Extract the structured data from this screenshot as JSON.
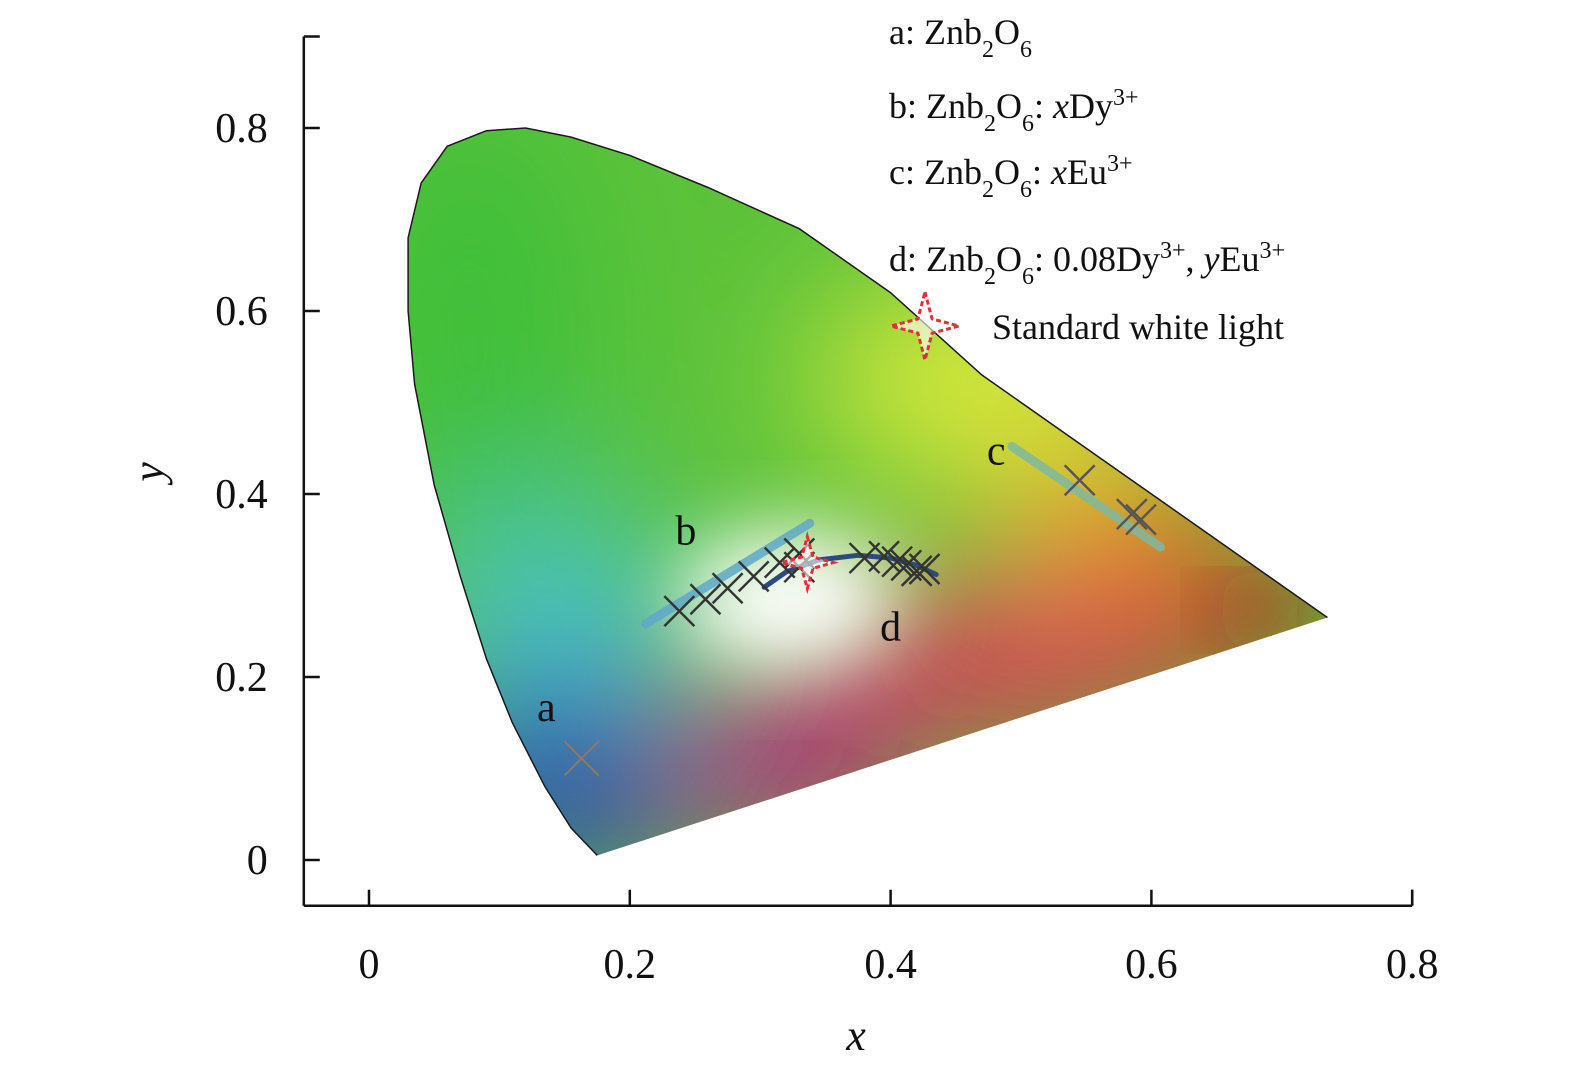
{
  "chart_data": {
    "type": "scatter",
    "title": "",
    "xlabel": "x",
    "ylabel": "y",
    "xlim": [
      -0.05,
      0.8
    ],
    "ylim": [
      -0.05,
      0.9
    ],
    "xticks": [
      0,
      0.2,
      0.4,
      0.6,
      0.8
    ],
    "yticks": [
      0,
      0.2,
      0.4,
      0.6,
      0.8
    ],
    "xtick_labels": [
      "0",
      "0.2",
      "0.4",
      "0.6",
      "0.8"
    ],
    "ytick_labels": [
      "0",
      "0.2",
      "0.4",
      "0.6",
      "0.8"
    ],
    "background": "CIE 1931 chromaticity diagram",
    "series": [
      {
        "name": "a",
        "legend": {
          "prefix": "a: Znb",
          "sub1": "2",
          "mid": "O",
          "sub2": "6",
          "tail": []
        },
        "points": [
          [
            0.163,
            0.111
          ]
        ],
        "color": "#8a7a6a"
      },
      {
        "name": "b",
        "legend": {
          "prefix": "b: Znb",
          "sub1": "2",
          "mid": "O",
          "sub2": "6",
          "tail": [
            {
              "t": ": ",
              "s": "n"
            },
            {
              "t": "x",
              "s": "i"
            },
            {
              "t": "Dy",
              "s": "n"
            },
            {
              "t": "3+",
              "s": "sup"
            }
          ]
        },
        "points": [
          [
            0.238,
            0.272
          ],
          [
            0.258,
            0.285
          ],
          [
            0.275,
            0.297
          ],
          [
            0.295,
            0.31
          ],
          [
            0.315,
            0.325
          ],
          [
            0.33,
            0.335
          ]
        ],
        "trend": [
          [
            0.212,
            0.258
          ],
          [
            0.338,
            0.368
          ]
        ],
        "color": "#333333",
        "trend_color": "#5fa8c8"
      },
      {
        "name": "c",
        "legend": {
          "prefix": "c: Znb",
          "sub1": "2",
          "mid": "O",
          "sub2": "6",
          "tail": [
            {
              "t": ": ",
              "s": "n"
            },
            {
              "t": "x",
              "s": "i"
            },
            {
              "t": "Eu",
              "s": "n"
            },
            {
              "t": "3+",
              "s": "sup"
            }
          ]
        },
        "points": [
          [
            0.545,
            0.415
          ],
          [
            0.585,
            0.378
          ],
          [
            0.592,
            0.372
          ]
        ],
        "trend": [
          [
            0.493,
            0.452
          ],
          [
            0.607,
            0.342
          ]
        ],
        "color": "#555555",
        "trend_color": "#7fb8a0"
      },
      {
        "name": "d",
        "legend": {
          "prefix": "d: Znb",
          "sub1": "2",
          "mid": "O",
          "sub2": "6",
          "tail": [
            {
              "t": ": 0.08Dy",
              "s": "n"
            },
            {
              "t": "3+",
              "s": "sup"
            },
            {
              "t": ", ",
              "s": "n"
            },
            {
              "t": "y",
              "s": "i"
            },
            {
              "t": "Eu",
              "s": "n"
            },
            {
              "t": "3+",
              "s": "sup"
            }
          ]
        },
        "points": [
          [
            0.33,
            0.32
          ],
          [
            0.38,
            0.33
          ],
          [
            0.395,
            0.332
          ],
          [
            0.405,
            0.326
          ],
          [
            0.412,
            0.322
          ],
          [
            0.42,
            0.316
          ],
          [
            0.426,
            0.318
          ]
        ],
        "trend": [
          [
            0.303,
            0.298
          ],
          [
            0.32,
            0.315
          ],
          [
            0.345,
            0.328
          ],
          [
            0.375,
            0.333
          ],
          [
            0.4,
            0.33
          ],
          [
            0.42,
            0.322
          ],
          [
            0.435,
            0.312
          ]
        ],
        "color": "#333333",
        "trend_color": "#2c4a7a"
      }
    ],
    "white_point": {
      "label": "Standard white light",
      "point": [
        0.33,
        0.325
      ],
      "color": "#e0303c"
    },
    "series_labels": [
      {
        "text": "a",
        "at": [
          0.136,
          0.152
        ]
      },
      {
        "text": "b",
        "at": [
          0.243,
          0.345
        ]
      },
      {
        "text": "c",
        "at": [
          0.481,
          0.432
        ]
      },
      {
        "text": "d",
        "at": [
          0.4,
          0.24
        ]
      }
    ]
  }
}
